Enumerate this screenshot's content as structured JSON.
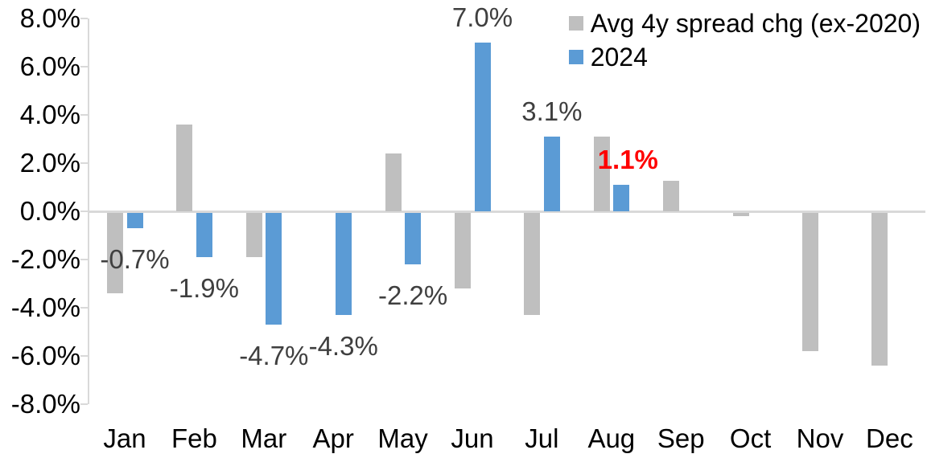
{
  "chart_data": {
    "type": "bar",
    "title": "",
    "xlabel": "",
    "ylabel": "",
    "categories": [
      "Jan",
      "Feb",
      "Mar",
      "Apr",
      "May",
      "Jun",
      "Jul",
      "Aug",
      "Sep",
      "Oct",
      "Nov",
      "Dec"
    ],
    "series": [
      {
        "name": "Avg 4y spread chg (ex-2020)",
        "color": "#bfbfbf",
        "values": [
          -3.4,
          3.6,
          -1.9,
          0.0,
          2.4,
          -3.2,
          -4.3,
          3.1,
          1.25,
          -0.2,
          -5.8,
          -6.4
        ]
      },
      {
        "name": "2024",
        "color": "#5b9bd5",
        "values": [
          -0.7,
          -1.9,
          -4.7,
          -4.3,
          -2.2,
          7.0,
          3.1,
          1.1,
          null,
          null,
          null,
          null
        ]
      }
    ],
    "data_labels": [
      {
        "month_index": 0,
        "series_index": 1,
        "text": "-0.7%",
        "color": "#3f3f3f",
        "bold": false
      },
      {
        "month_index": 1,
        "series_index": 1,
        "text": "-1.9%",
        "color": "#3f3f3f",
        "bold": false
      },
      {
        "month_index": 2,
        "series_index": 1,
        "text": "-4.7%",
        "color": "#3f3f3f",
        "bold": false
      },
      {
        "month_index": 3,
        "series_index": 1,
        "text": "-4.3%",
        "color": "#3f3f3f",
        "bold": false
      },
      {
        "month_index": 4,
        "series_index": 1,
        "text": "-2.2%",
        "color": "#3f3f3f",
        "bold": false
      },
      {
        "month_index": 5,
        "series_index": 1,
        "text": "7.0%",
        "color": "#3f3f3f",
        "bold": false
      },
      {
        "month_index": 6,
        "series_index": 1,
        "text": "3.1%",
        "color": "#3f3f3f",
        "bold": false
      },
      {
        "month_index": 7,
        "series_index": 1,
        "text": "1.1%",
        "color": "#ff0000",
        "bold": true
      }
    ],
    "y_ticks": [
      {
        "value": 8,
        "label": "8.0%"
      },
      {
        "value": 6,
        "label": "6.0%"
      },
      {
        "value": 4,
        "label": "4.0%"
      },
      {
        "value": 2,
        "label": "2.0%"
      },
      {
        "value": 0,
        "label": "0.0%"
      },
      {
        "value": -2,
        "label": "-2.0%"
      },
      {
        "value": -4,
        "label": "-4.0%"
      },
      {
        "value": -6,
        "label": "-6.0%"
      },
      {
        "value": -8,
        "label": "-8.0%"
      }
    ],
    "ylim": [
      -8,
      8
    ],
    "grid": false,
    "legend_position": "top-right"
  },
  "colors": {
    "axis_line": "#d9d9d9",
    "zero_line": "#d9d9d9",
    "tick_text": "#000000",
    "gray_series": "#bfbfbf",
    "blue_series": "#5b9bd5",
    "highlight_label": "#ff0000"
  }
}
